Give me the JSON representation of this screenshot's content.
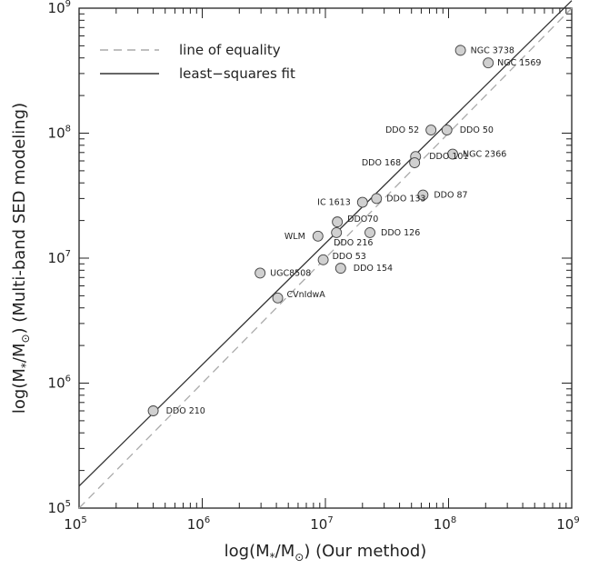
{
  "chart_data": {
    "type": "scatter",
    "xlabel": "log(M*/M⊙) (Our method)",
    "ylabel": "log(M*/M⊙) (Multi-band SED modeling)",
    "x_scale": "log",
    "y_scale": "log",
    "xlim": [
      100000.0,
      1000000000.0
    ],
    "ylim": [
      100000.0,
      1000000000.0
    ],
    "tick_labels": [
      "10⁵",
      "10⁶",
      "10⁷",
      "10⁸",
      "10⁹"
    ],
    "legend": {
      "placement": "top-left",
      "entries": [
        {
          "label": "line of equality",
          "style": "dashed",
          "color": "#aaaaaa"
        },
        {
          "label": "least−squares fit",
          "style": "solid",
          "color": "#333333"
        }
      ]
    },
    "lines": {
      "equality": {
        "x": [
          100000,
          1000000000
        ],
        "y": [
          100000,
          1000000000
        ]
      },
      "fit": {
        "x": [
          100000,
          1000000000
        ],
        "y": [
          150000,
          1150000000
        ]
      }
    },
    "points": [
      {
        "name": "NGC 3738",
        "x": 125000000,
        "y": 460000000
      },
      {
        "name": "NGC 1569",
        "x": 210000000,
        "y": 365000000
      },
      {
        "name": "DDO 52",
        "x": 72000000,
        "y": 106000000
      },
      {
        "name": "DDO 50",
        "x": 97000000,
        "y": 106000000
      },
      {
        "name": "NGC 2366",
        "x": 108000000,
        "y": 68000000
      },
      {
        "name": "DDO 101",
        "x": 54000000,
        "y": 65000000
      },
      {
        "name": "DDO 168",
        "x": 53000000,
        "y": 58000000
      },
      {
        "name": "DDO 87",
        "x": 62000000,
        "y": 32000000
      },
      {
        "name": "DDO 133",
        "x": 26000000,
        "y": 30000000
      },
      {
        "name": "IC 1613",
        "x": 20000000,
        "y": 28000000
      },
      {
        "name": "DDO70",
        "x": 12500000,
        "y": 19500000
      },
      {
        "name": "DDO 216",
        "x": 12300000,
        "y": 16000000
      },
      {
        "name": "DDO 126",
        "x": 23000000,
        "y": 16000000
      },
      {
        "name": "WLM",
        "x": 8700000,
        "y": 15000000
      },
      {
        "name": "DDO 53",
        "x": 9600000,
        "y": 9700000
      },
      {
        "name": "DDO 154",
        "x": 13300000,
        "y": 8300000
      },
      {
        "name": "UGC8508",
        "x": 2950000,
        "y": 7600000
      },
      {
        "name": "CVnIdwA",
        "x": 4100000,
        "y": 4800000
      },
      {
        "name": "DDO 210",
        "x": 400000,
        "y": 600000
      }
    ]
  }
}
